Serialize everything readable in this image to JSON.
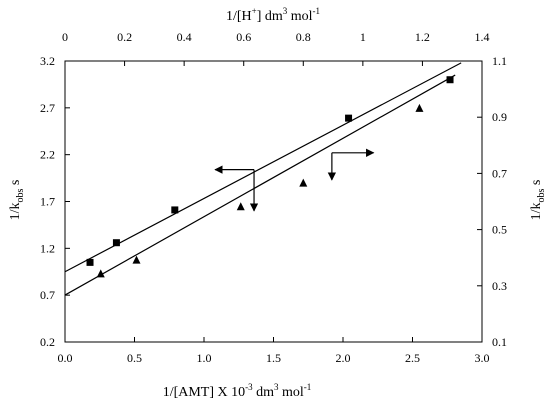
{
  "chart_data": {
    "type": "scatter",
    "grid": false,
    "legend": "none",
    "axes": {
      "bottom": {
        "label": "1/[AMT] X 10-3 dm3 mol-1",
        "label_parts": [
          {
            "text": "1/[AMT] X 10",
            "sup": false
          },
          {
            "text": "-3",
            "sup": true
          },
          {
            "text": " dm",
            "sup": false
          },
          {
            "text": "3",
            "sup": true
          },
          {
            "text": " mol",
            "sup": false
          },
          {
            "text": "-1",
            "sup": true
          }
        ],
        "range": [
          0,
          3.0
        ],
        "ticks": [
          0.0,
          0.5,
          1.0,
          1.5,
          2.0,
          2.5,
          3.0
        ],
        "tick_labels": [
          "0.0",
          "0.5",
          "1.0",
          "1.5",
          "2.0",
          "2.5",
          "3.0"
        ]
      },
      "top": {
        "label": "1/[H+] dm3 mol-1",
        "label_parts": [
          {
            "text": "1/[H",
            "sup": false
          },
          {
            "text": "+",
            "sup": true
          },
          {
            "text": "] dm",
            "sup": false
          },
          {
            "text": "3",
            "sup": true
          },
          {
            "text": " mol",
            "sup": false
          },
          {
            "text": "-1",
            "sup": true
          }
        ],
        "range": [
          0,
          1.4
        ],
        "ticks": [
          0,
          0.2,
          0.4,
          0.6,
          0.8,
          1.0,
          1.2,
          1.4
        ],
        "tick_labels": [
          "0",
          "0.2",
          "0.4",
          "0.6",
          "0.8",
          "1",
          "1.2",
          "1.4"
        ]
      },
      "left": {
        "label": "1/kobs s",
        "label_parts": [
          {
            "text": "1/k",
            "sub": false
          },
          {
            "text": "obs",
            "sub": true
          },
          {
            "text": " s",
            "sub": false
          }
        ],
        "range": [
          0.2,
          3.2
        ],
        "ticks": [
          0.2,
          0.7,
          1.2,
          1.7,
          2.2,
          2.7,
          3.2
        ],
        "tick_labels": [
          "0.2",
          "0.7",
          "1.2",
          "1.7",
          "2.2",
          "2.7",
          "3.2"
        ]
      },
      "right": {
        "label": "1/kobs s",
        "label_parts": [
          {
            "text": "1/k",
            "sub": false
          },
          {
            "text": "obs",
            "sub": true
          },
          {
            "text": " s",
            "sub": false
          }
        ],
        "range": [
          0.1,
          1.1
        ],
        "ticks": [
          0.1,
          0.3,
          0.5,
          0.7,
          0.9,
          1.1
        ],
        "tick_labels": [
          "0.1",
          "0.3",
          "0.5",
          "0.7",
          "0.9",
          "1.1"
        ]
      }
    },
    "series": [
      {
        "marker": "square",
        "x_axis": "bottom",
        "y_axis": "left",
        "points": [
          {
            "x": 0.18,
            "y": 1.05
          },
          {
            "x": 0.37,
            "y": 1.26
          },
          {
            "x": 0.79,
            "y": 1.61
          },
          {
            "x": 2.04,
            "y": 2.59
          },
          {
            "x": 2.77,
            "y": 3.0
          }
        ],
        "fit_line": {
          "x": [
            0,
            2.85
          ],
          "y": [
            0.95,
            3.18
          ]
        }
      },
      {
        "marker": "triangle",
        "x_axis": "top",
        "y_axis": "right",
        "points": [
          {
            "x": 0.12,
            "y": 0.344
          },
          {
            "x": 0.24,
            "y": 0.393
          },
          {
            "x": 0.59,
            "y": 0.583
          },
          {
            "x": 0.8,
            "y": 0.667
          },
          {
            "x": 1.19,
            "y": 0.933
          }
        ],
        "fit_line": {
          "x": [
            0,
            1.31
          ],
          "y": [
            0.267,
            1.05
          ]
        }
      }
    ],
    "annotations": [
      {
        "type": "axis-pointer",
        "direction": "left",
        "x": 1.36,
        "y": 2.04,
        "tip_x": 1.08,
        "down_to_y": 1.6
      },
      {
        "type": "axis-pointer",
        "direction": "right",
        "x": 1.92,
        "y": 2.22,
        "tip_x": 2.22,
        "down_to_y": 1.93
      }
    ]
  }
}
